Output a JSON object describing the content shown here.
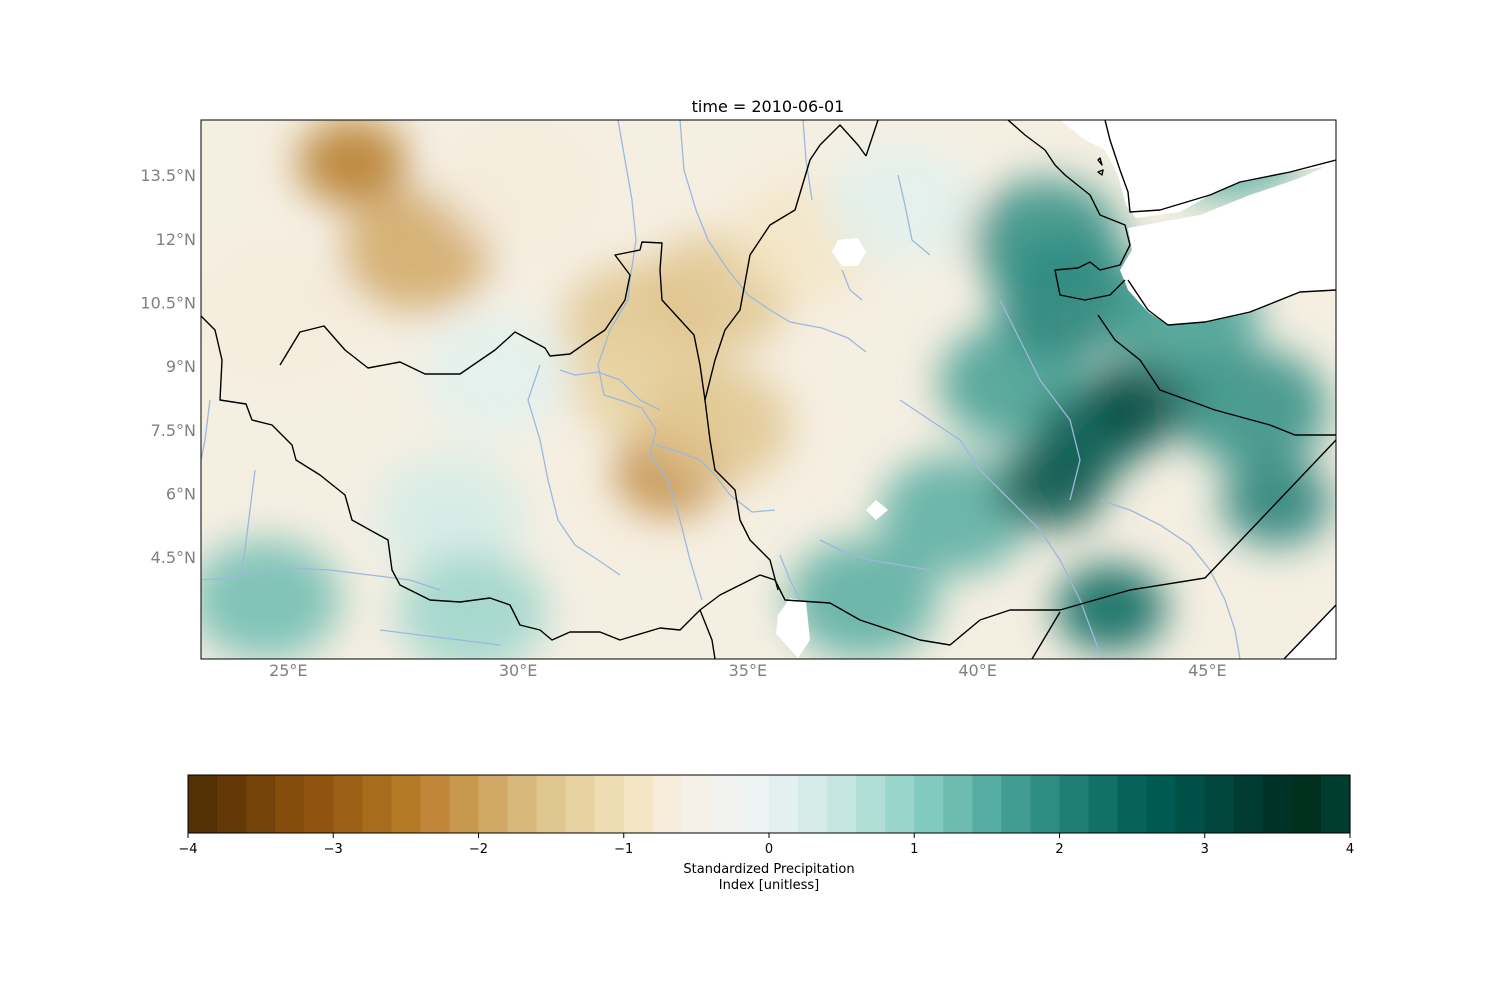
{
  "title": "time = 2010-06-01",
  "colorbar": {
    "label_line1": "Standardized Precipitation",
    "label_line2": "Index [unitless]",
    "ticks": [
      "−4",
      "−3",
      "−2",
      "−1",
      "0",
      "1",
      "2",
      "3",
      "4"
    ],
    "vmin": -4,
    "vmax": 4,
    "levels": 40,
    "colormap": "BrBG",
    "colors": [
      "#543005",
      "#643907",
      "#744309",
      "#844d0c",
      "#8e5410",
      "#9b6016",
      "#a86c1d",
      "#b57a26",
      "#c0863a",
      "#c9984f",
      "#d1a865",
      "#d9b87b",
      "#e0c68f",
      "#e7d2a1",
      "#eedcb3",
      "#f4e6c5",
      "#f5ecda",
      "#f5f0e8",
      "#f2f2f0",
      "#eef3f3",
      "#e2f1ef",
      "#d4ece8",
      "#c3e6e0",
      "#b0ded6",
      "#9ad5cb",
      "#82cabe",
      "#6cbcb0",
      "#56ada1",
      "#419d92",
      "#2e8d83",
      "#1f7e75",
      "#117068",
      "#05635b",
      "#015a51",
      "#005047",
      "#00463c",
      "#003c32",
      "#003328",
      "#01301f",
      "#003c30"
    ]
  },
  "chart_data": {
    "type": "heatmap",
    "variable": "Standardized Precipitation Index",
    "units": "unitless",
    "time": "2010-06-01",
    "xlim": [
      23.1,
      47.8
    ],
    "ylim": [
      2.1,
      14.8
    ],
    "x_ticks": [
      25,
      30,
      35,
      40,
      45
    ],
    "y_ticks": [
      4.5,
      6,
      7.5,
      9,
      10.5,
      12,
      13.5
    ],
    "x_tick_labels": [
      "25°E",
      "30°E",
      "35°E",
      "40°E",
      "45°E"
    ],
    "y_tick_labels": [
      "4.5°N",
      "6°N",
      "7.5°N",
      "9°N",
      "10.5°N",
      "12°N",
      "13.5°N"
    ],
    "color_limits": [
      -4,
      4
    ],
    "field_features": [
      {
        "lon": 26.4,
        "lat": 13.8,
        "spi": -2.6
      },
      {
        "lon": 27.8,
        "lat": 11.7,
        "spi": -1.9
      },
      {
        "lon": 32.6,
        "lat": 10.0,
        "spi": -1.6
      },
      {
        "lon": 32.8,
        "lat": 8.6,
        "spi": -1.4
      },
      {
        "lon": 33.3,
        "lat": 6.5,
        "spi": -2.3
      },
      {
        "lon": 34.3,
        "lat": 7.6,
        "spi": -1.6
      },
      {
        "lon": 34.3,
        "lat": 10.7,
        "spi": -1.5
      },
      {
        "lon": 36.3,
        "lat": 12.0,
        "spi": -1.0
      },
      {
        "lon": 24.8,
        "lat": 10.3,
        "spi": -0.8
      },
      {
        "lon": 30.0,
        "lat": 13.2,
        "spi": -0.8
      },
      {
        "lon": 29.5,
        "lat": 8.8,
        "spi": 0.0
      },
      {
        "lon": 28.5,
        "lat": 5.5,
        "spi": 0.2
      },
      {
        "lon": 24.5,
        "lat": 3.5,
        "spi": 1.2
      },
      {
        "lon": 29.0,
        "lat": 3.2,
        "spi": 0.8
      },
      {
        "lon": 37.5,
        "lat": 3.5,
        "spi": 1.4
      },
      {
        "lon": 39.5,
        "lat": 5.5,
        "spi": 1.5
      },
      {
        "lon": 40.8,
        "lat": 8.6,
        "spi": 1.6
      },
      {
        "lon": 42.5,
        "lat": 7.4,
        "spi": 2.6
      },
      {
        "lon": 43.6,
        "lat": 8.2,
        "spi": 3.1
      },
      {
        "lon": 41.6,
        "lat": 6.2,
        "spi": 2.8
      },
      {
        "lon": 42.9,
        "lat": 3.3,
        "spi": 2.4
      },
      {
        "lon": 42.0,
        "lat": 10.6,
        "spi": 2.0
      },
      {
        "lon": 41.5,
        "lat": 12.0,
        "spi": 1.8
      },
      {
        "lon": 44.5,
        "lat": 10.2,
        "spi": 1.6
      },
      {
        "lon": 46.5,
        "lat": 5.8,
        "spi": 2.1
      },
      {
        "lon": 46.0,
        "lat": 8.0,
        "spi": 1.8
      },
      {
        "lon": 45.5,
        "lat": 14.3,
        "spi": 1.5
      },
      {
        "lon": 38.3,
        "lat": 12.8,
        "spi": 0.0
      }
    ]
  }
}
